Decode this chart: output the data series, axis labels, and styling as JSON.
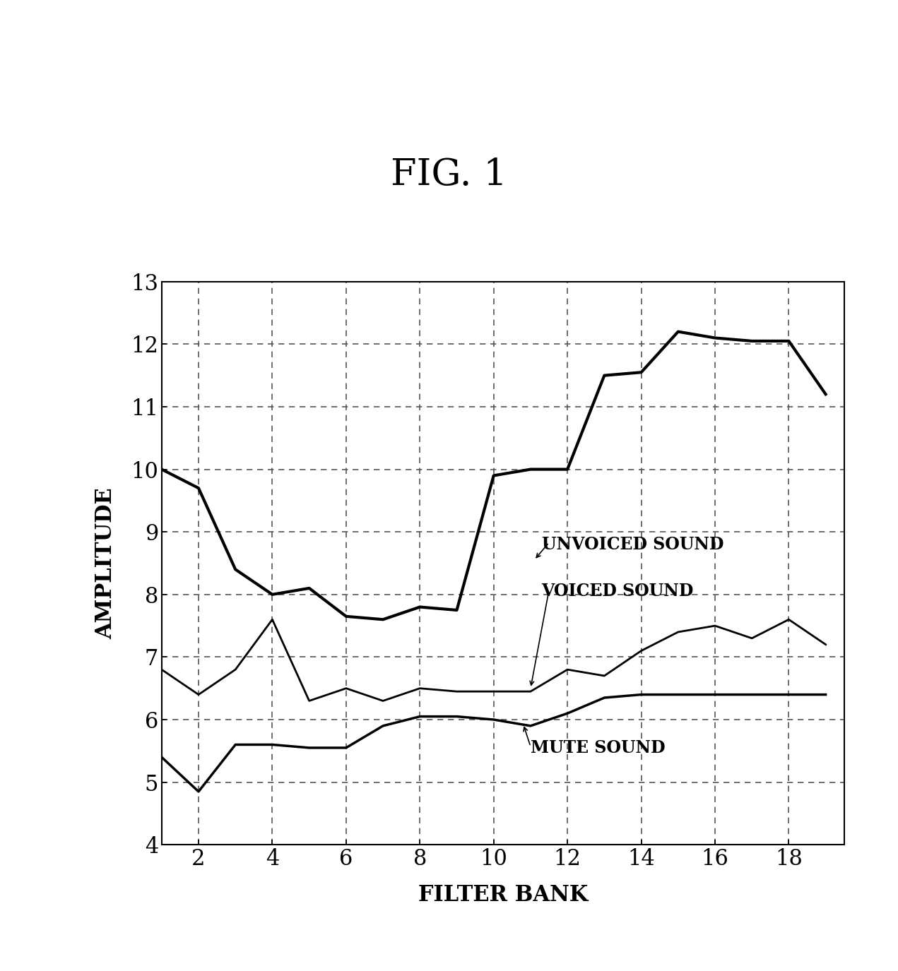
{
  "title": "FIG. 1",
  "xlabel": "FILTER BANK",
  "ylabel": "AMPLITUDE",
  "xlim": [
    1,
    19.5
  ],
  "ylim": [
    4,
    13
  ],
  "xticks": [
    2,
    4,
    6,
    8,
    10,
    12,
    14,
    16,
    18
  ],
  "yticks": [
    4,
    5,
    6,
    7,
    8,
    9,
    10,
    11,
    12,
    13
  ],
  "background_color": "#ffffff",
  "unvoiced_x": [
    1,
    2,
    3,
    4,
    5,
    6,
    7,
    8,
    9,
    10,
    11,
    12,
    13,
    14,
    15,
    16,
    17,
    18,
    19
  ],
  "unvoiced_y": [
    10.0,
    9.7,
    8.4,
    8.0,
    8.1,
    7.65,
    7.6,
    7.8,
    7.75,
    9.9,
    10.0,
    10.0,
    11.5,
    11.55,
    12.2,
    12.1,
    12.05,
    12.05,
    11.2
  ],
  "voiced_x": [
    1,
    2,
    3,
    4,
    5,
    6,
    7,
    8,
    9,
    10,
    11,
    12,
    13,
    14,
    15,
    16,
    17,
    18,
    19
  ],
  "voiced_y": [
    6.8,
    6.4,
    6.8,
    7.6,
    6.3,
    6.5,
    6.3,
    6.5,
    6.45,
    6.45,
    6.45,
    6.8,
    6.7,
    7.1,
    7.4,
    7.5,
    7.3,
    7.6,
    7.2
  ],
  "mute_x": [
    1,
    2,
    3,
    4,
    5,
    6,
    7,
    8,
    9,
    10,
    11,
    12,
    13,
    14,
    15,
    16,
    17,
    18,
    19
  ],
  "mute_y": [
    5.4,
    4.85,
    5.6,
    5.6,
    5.55,
    5.55,
    5.9,
    6.05,
    6.05,
    6.0,
    5.9,
    6.1,
    6.35,
    6.4,
    6.4,
    6.4,
    6.4,
    6.4,
    6.4
  ],
  "line_color": "#000000",
  "unvoiced_label": "UNVOICED SOUND",
  "voiced_label": "VOICED SOUND",
  "mute_label": "MUTE SOUND",
  "title_fontsize": 38,
  "axis_label_fontsize": 22,
  "tick_fontsize": 22,
  "annotation_fontsize": 17,
  "unvoiced_lw": 3.0,
  "voiced_lw": 2.0,
  "mute_lw": 2.5
}
